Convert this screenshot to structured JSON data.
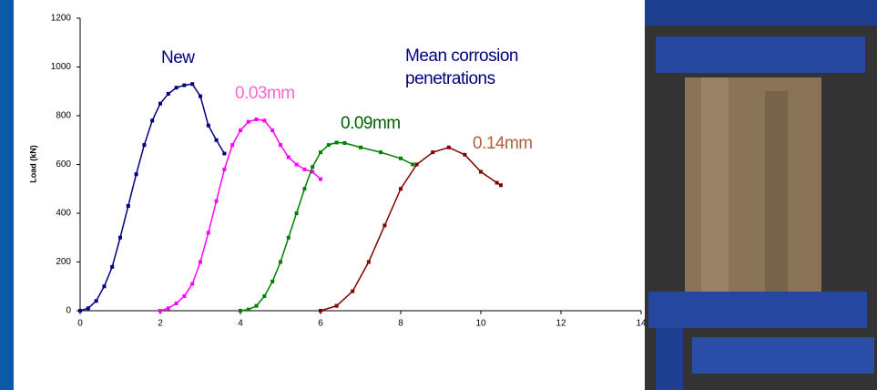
{
  "chart_data": {
    "type": "scatter",
    "y_label": "Load (kN)",
    "xlim": [
      0,
      14
    ],
    "xticks": [
      0,
      2,
      4,
      6,
      8,
      10,
      12,
      14
    ],
    "ylim": [
      0,
      1200
    ],
    "yticks": [
      0,
      200,
      400,
      600,
      800,
      1000,
      1200
    ],
    "annotations": [
      "New",
      "0.03mm",
      "0.09mm",
      "0.14mm",
      "Mean corrosion",
      "penetrations"
    ],
    "series": [
      {
        "name": "New",
        "color": "#000080",
        "x": [
          0,
          0.2,
          0.4,
          0.6,
          0.8,
          1.0,
          1.2,
          1.4,
          1.6,
          1.8,
          2.0,
          2.2,
          2.4,
          2.6,
          2.8,
          3.0,
          3.2,
          3.4,
          3.6
        ],
        "values": [
          0,
          10,
          40,
          100,
          180,
          300,
          430,
          560,
          680,
          780,
          850,
          890,
          915,
          925,
          930,
          880,
          760,
          700,
          645
        ]
      },
      {
        "name": "0.03mm",
        "color": "#ff00ff",
        "x": [
          2.0,
          2.2,
          2.4,
          2.6,
          2.8,
          3.0,
          3.2,
          3.4,
          3.6,
          3.8,
          4.0,
          4.2,
          4.4,
          4.6,
          4.8,
          5.0,
          5.2,
          5.4,
          5.6,
          5.8,
          6.0
        ],
        "values": [
          0,
          10,
          30,
          60,
          110,
          200,
          320,
          450,
          580,
          680,
          740,
          775,
          785,
          780,
          740,
          680,
          630,
          600,
          580,
          570,
          540
        ]
      },
      {
        "name": "0.09mm",
        "color": "#008000",
        "x": [
          4.0,
          4.2,
          4.4,
          4.6,
          4.8,
          5.0,
          5.2,
          5.4,
          5.6,
          5.8,
          6.0,
          6.2,
          6.4,
          6.6,
          7.0,
          7.5,
          8.0,
          8.3
        ],
        "values": [
          0,
          5,
          20,
          60,
          120,
          200,
          300,
          400,
          500,
          590,
          650,
          680,
          690,
          688,
          670,
          650,
          625,
          600
        ]
      },
      {
        "name": "0.14mm",
        "color": "#800000",
        "x": [
          6.0,
          6.4,
          6.8,
          7.2,
          7.6,
          8.0,
          8.4,
          8.8,
          9.2,
          9.6,
          10.0,
          10.4,
          10.5
        ],
        "values": [
          0,
          20,
          80,
          200,
          350,
          500,
          600,
          650,
          670,
          640,
          570,
          525,
          515
        ]
      }
    ]
  }
}
